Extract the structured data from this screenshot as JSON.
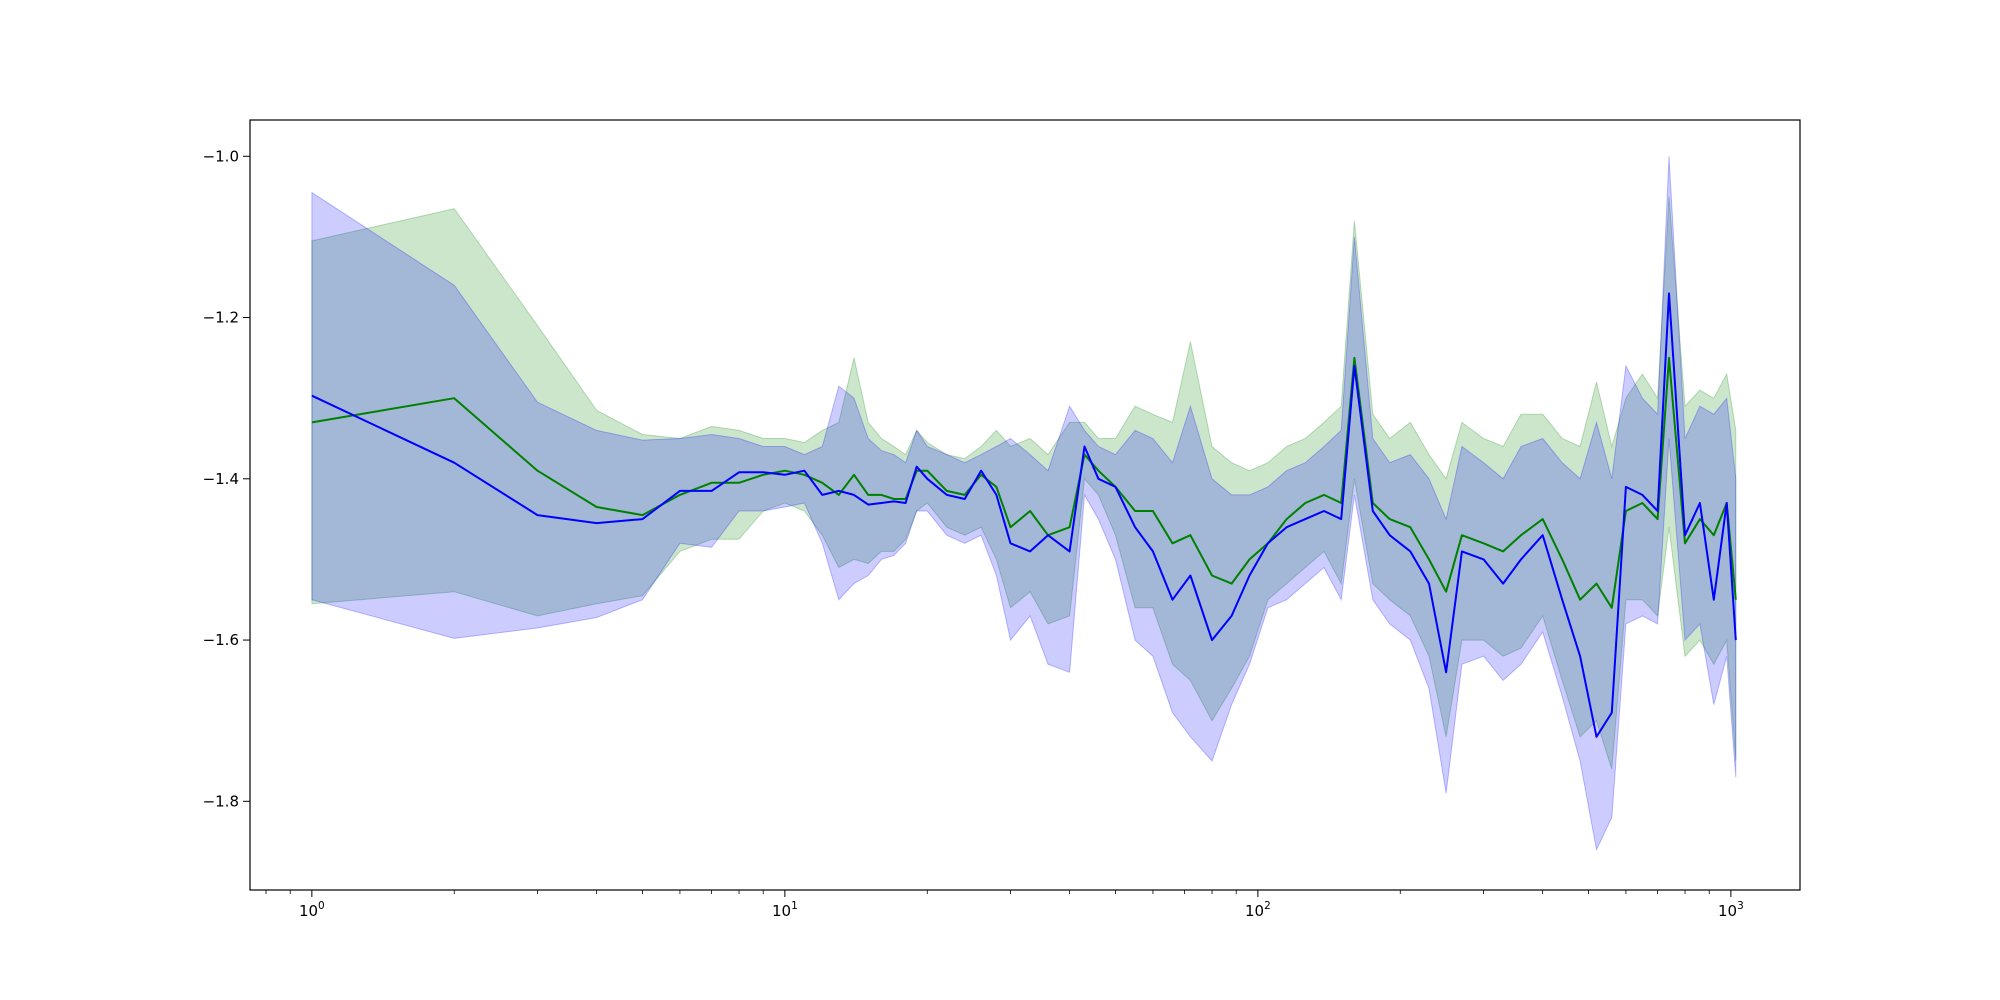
{
  "chart_data": {
    "type": "line",
    "title": "",
    "xlabel": "",
    "ylabel": "",
    "xscale": "log",
    "xlim": [
      0.74,
      1400
    ],
    "ylim": [
      -1.91,
      -0.955
    ],
    "grid": false,
    "legend": "none",
    "x_ticks": [
      {
        "value": 1,
        "base": "10",
        "exp": "0"
      },
      {
        "value": 10,
        "base": "10",
        "exp": "1"
      },
      {
        "value": 100,
        "base": "10",
        "exp": "2"
      },
      {
        "value": 1000,
        "base": "10",
        "exp": "3"
      }
    ],
    "y_ticks": [
      {
        "value": -1.8,
        "label": "−1.8"
      },
      {
        "value": -1.6,
        "label": "−1.6"
      },
      {
        "value": -1.4,
        "label": "−1.4"
      },
      {
        "value": -1.2,
        "label": "−1.2"
      },
      {
        "value": -1.0,
        "label": "−1.0"
      }
    ],
    "colors": {
      "green_line": "#008000",
      "green_band": "#008000",
      "blue_line": "#0000ff",
      "blue_band": "#0000ff",
      "band_opacity": 0.2
    },
    "series": [
      {
        "color": "green",
        "x": [
          1,
          2,
          3,
          4,
          5,
          6,
          7,
          8,
          9,
          10,
          11,
          12,
          13,
          14,
          15,
          16,
          17,
          18,
          19,
          20,
          22,
          24,
          26,
          28,
          30,
          33,
          36,
          40,
          43,
          46,
          50,
          55,
          60,
          66,
          72,
          80,
          88,
          96,
          105,
          115,
          126,
          138,
          150,
          160,
          175,
          190,
          210,
          230,
          250,
          270,
          300,
          330,
          360,
          400,
          440,
          480,
          520,
          560,
          600,
          650,
          700,
          740,
          800,
          860,
          920,
          980,
          1024
        ],
        "mean": [
          -1.33,
          -1.3,
          -1.39,
          -1.435,
          -1.445,
          -1.42,
          -1.405,
          -1.405,
          -1.395,
          -1.39,
          -1.395,
          -1.405,
          -1.42,
          -1.395,
          -1.42,
          -1.42,
          -1.425,
          -1.425,
          -1.39,
          -1.39,
          -1.415,
          -1.42,
          -1.395,
          -1.41,
          -1.46,
          -1.44,
          -1.47,
          -1.46,
          -1.37,
          -1.39,
          -1.41,
          -1.44,
          -1.44,
          -1.48,
          -1.47,
          -1.52,
          -1.53,
          -1.5,
          -1.48,
          -1.45,
          -1.43,
          -1.42,
          -1.43,
          -1.25,
          -1.43,
          -1.45,
          -1.46,
          -1.5,
          -1.54,
          -1.47,
          -1.48,
          -1.49,
          -1.47,
          -1.45,
          -1.5,
          -1.55,
          -1.53,
          -1.56,
          -1.44,
          -1.43,
          -1.45,
          -1.25,
          -1.48,
          -1.45,
          -1.47,
          -1.43,
          -1.55
        ],
        "lower": [
          -1.555,
          -1.54,
          -1.57,
          -1.555,
          -1.545,
          -1.49,
          -1.475,
          -1.475,
          -1.44,
          -1.43,
          -1.44,
          -1.47,
          -1.51,
          -1.5,
          -1.505,
          -1.49,
          -1.49,
          -1.475,
          -1.44,
          -1.43,
          -1.46,
          -1.47,
          -1.46,
          -1.5,
          -1.56,
          -1.54,
          -1.58,
          -1.57,
          -1.4,
          -1.42,
          -1.47,
          -1.56,
          -1.56,
          -1.63,
          -1.65,
          -1.7,
          -1.66,
          -1.62,
          -1.55,
          -1.53,
          -1.51,
          -1.49,
          -1.53,
          -1.4,
          -1.53,
          -1.55,
          -1.57,
          -1.62,
          -1.72,
          -1.6,
          -1.6,
          -1.62,
          -1.61,
          -1.57,
          -1.65,
          -1.72,
          -1.7,
          -1.76,
          -1.55,
          -1.55,
          -1.57,
          -1.46,
          -1.62,
          -1.6,
          -1.63,
          -1.6,
          -1.75
        ],
        "upper": [
          -1.105,
          -1.065,
          -1.21,
          -1.315,
          -1.345,
          -1.35,
          -1.335,
          -1.34,
          -1.35,
          -1.35,
          -1.355,
          -1.34,
          -1.33,
          -1.25,
          -1.33,
          -1.35,
          -1.36,
          -1.37,
          -1.34,
          -1.355,
          -1.37,
          -1.375,
          -1.36,
          -1.34,
          -1.36,
          -1.35,
          -1.37,
          -1.33,
          -1.33,
          -1.35,
          -1.35,
          -1.31,
          -1.32,
          -1.33,
          -1.23,
          -1.36,
          -1.38,
          -1.39,
          -1.38,
          -1.36,
          -1.35,
          -1.33,
          -1.31,
          -1.08,
          -1.32,
          -1.35,
          -1.33,
          -1.37,
          -1.4,
          -1.33,
          -1.35,
          -1.36,
          -1.32,
          -1.32,
          -1.35,
          -1.36,
          -1.28,
          -1.36,
          -1.3,
          -1.27,
          -1.3,
          -1.05,
          -1.31,
          -1.29,
          -1.3,
          -1.27,
          -1.34
        ]
      },
      {
        "color": "blue",
        "x": [
          1,
          2,
          3,
          4,
          5,
          6,
          7,
          8,
          9,
          10,
          11,
          12,
          13,
          14,
          15,
          16,
          17,
          18,
          19,
          20,
          22,
          24,
          26,
          28,
          30,
          33,
          36,
          40,
          43,
          46,
          50,
          55,
          60,
          66,
          72,
          80,
          88,
          96,
          105,
          115,
          126,
          138,
          150,
          160,
          175,
          190,
          210,
          230,
          250,
          270,
          300,
          330,
          360,
          400,
          440,
          480,
          520,
          560,
          600,
          650,
          700,
          740,
          800,
          860,
          920,
          980,
          1024
        ],
        "mean": [
          -1.297,
          -1.38,
          -1.445,
          -1.455,
          -1.45,
          -1.415,
          -1.415,
          -1.392,
          -1.392,
          -1.395,
          -1.39,
          -1.42,
          -1.415,
          -1.42,
          -1.432,
          -1.43,
          -1.428,
          -1.43,
          -1.385,
          -1.4,
          -1.42,
          -1.425,
          -1.39,
          -1.42,
          -1.48,
          -1.49,
          -1.47,
          -1.49,
          -1.36,
          -1.4,
          -1.41,
          -1.46,
          -1.49,
          -1.55,
          -1.52,
          -1.6,
          -1.57,
          -1.52,
          -1.48,
          -1.46,
          -1.45,
          -1.44,
          -1.45,
          -1.26,
          -1.44,
          -1.47,
          -1.49,
          -1.53,
          -1.64,
          -1.49,
          -1.5,
          -1.53,
          -1.5,
          -1.47,
          -1.55,
          -1.62,
          -1.72,
          -1.69,
          -1.41,
          -1.42,
          -1.44,
          -1.17,
          -1.47,
          -1.43,
          -1.55,
          -1.43,
          -1.6
        ],
        "lower": [
          -1.55,
          -1.598,
          -1.585,
          -1.572,
          -1.55,
          -1.48,
          -1.485,
          -1.44,
          -1.44,
          -1.435,
          -1.43,
          -1.48,
          -1.55,
          -1.53,
          -1.52,
          -1.5,
          -1.495,
          -1.48,
          -1.44,
          -1.44,
          -1.47,
          -1.48,
          -1.47,
          -1.52,
          -1.6,
          -1.57,
          -1.63,
          -1.64,
          -1.42,
          -1.45,
          -1.5,
          -1.6,
          -1.62,
          -1.69,
          -1.72,
          -1.75,
          -1.68,
          -1.63,
          -1.56,
          -1.55,
          -1.53,
          -1.51,
          -1.55,
          -1.42,
          -1.55,
          -1.58,
          -1.6,
          -1.66,
          -1.79,
          -1.63,
          -1.62,
          -1.65,
          -1.63,
          -1.59,
          -1.67,
          -1.75,
          -1.86,
          -1.82,
          -1.58,
          -1.57,
          -1.58,
          -1.35,
          -1.6,
          -1.58,
          -1.68,
          -1.62,
          -1.77
        ],
        "upper": [
          -1.045,
          -1.16,
          -1.305,
          -1.34,
          -1.352,
          -1.35,
          -1.345,
          -1.35,
          -1.36,
          -1.36,
          -1.37,
          -1.36,
          -1.285,
          -1.3,
          -1.35,
          -1.365,
          -1.37,
          -1.38,
          -1.34,
          -1.36,
          -1.37,
          -1.38,
          -1.37,
          -1.36,
          -1.35,
          -1.37,
          -1.39,
          -1.31,
          -1.34,
          -1.36,
          -1.37,
          -1.34,
          -1.35,
          -1.38,
          -1.31,
          -1.4,
          -1.42,
          -1.42,
          -1.41,
          -1.39,
          -1.38,
          -1.36,
          -1.34,
          -1.1,
          -1.35,
          -1.38,
          -1.37,
          -1.4,
          -1.45,
          -1.36,
          -1.38,
          -1.4,
          -1.36,
          -1.35,
          -1.38,
          -1.4,
          -1.33,
          -1.4,
          -1.26,
          -1.3,
          -1.32,
          -1.0,
          -1.35,
          -1.31,
          -1.32,
          -1.3,
          -1.4
        ]
      }
    ]
  }
}
